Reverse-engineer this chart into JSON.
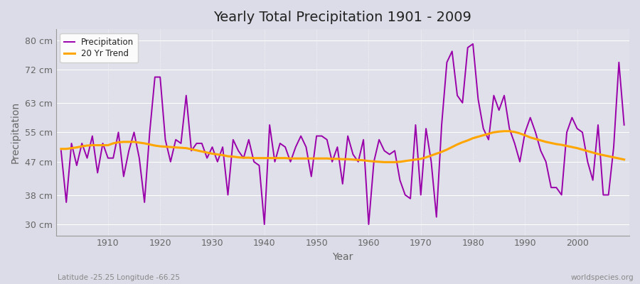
{
  "title": "Yearly Total Precipitation 1901 - 2009",
  "xlabel": "Year",
  "ylabel": "Precipitation",
  "bottom_left_label": "Latitude -25.25 Longitude -66.25",
  "bottom_right_label": "worldspecies.org",
  "fig_background_color": "#dcdce8",
  "plot_background_color": "#e0e0ea",
  "precip_color": "#9900aa",
  "trend_color": "#ffa500",
  "precip_linewidth": 1.4,
  "trend_linewidth": 2.2,
  "yticks": [
    30,
    38,
    47,
    55,
    63,
    72,
    80
  ],
  "ytick_labels": [
    "30 cm",
    "38 cm",
    "47 cm",
    "55 cm",
    "63 cm",
    "72 cm",
    "80 cm"
  ],
  "xticks": [
    1910,
    1920,
    1930,
    1940,
    1950,
    1960,
    1970,
    1980,
    1990,
    2000
  ],
  "ylim": [
    27,
    83
  ],
  "xlim": [
    1900,
    2010
  ],
  "years": [
    1901,
    1902,
    1903,
    1904,
    1905,
    1906,
    1907,
    1908,
    1909,
    1910,
    1911,
    1912,
    1913,
    1914,
    1915,
    1916,
    1917,
    1918,
    1919,
    1920,
    1921,
    1922,
    1923,
    1924,
    1925,
    1926,
    1927,
    1928,
    1929,
    1930,
    1931,
    1932,
    1933,
    1934,
    1935,
    1936,
    1937,
    1938,
    1939,
    1940,
    1941,
    1942,
    1943,
    1944,
    1945,
    1946,
    1947,
    1948,
    1949,
    1950,
    1951,
    1952,
    1953,
    1954,
    1955,
    1956,
    1957,
    1958,
    1959,
    1960,
    1961,
    1962,
    1963,
    1964,
    1965,
    1966,
    1967,
    1968,
    1969,
    1970,
    1971,
    1972,
    1973,
    1974,
    1975,
    1976,
    1977,
    1978,
    1979,
    1980,
    1981,
    1982,
    1983,
    1984,
    1985,
    1986,
    1987,
    1988,
    1989,
    1990,
    1991,
    1992,
    1993,
    1994,
    1995,
    1996,
    1997,
    1998,
    1999,
    2000,
    2001,
    2002,
    2003,
    2004,
    2005,
    2006,
    2007,
    2008,
    2009
  ],
  "precip": [
    50,
    36,
    52,
    46,
    52,
    48,
    54,
    44,
    52,
    48,
    48,
    55,
    43,
    50,
    55,
    48,
    36,
    55,
    70,
    70,
    53,
    47,
    53,
    52,
    65,
    50,
    52,
    52,
    48,
    51,
    47,
    51,
    38,
    53,
    50,
    48,
    53,
    47,
    46,
    30,
    57,
    47,
    52,
    51,
    47,
    51,
    54,
    51,
    43,
    54,
    54,
    53,
    47,
    51,
    41,
    54,
    49,
    47,
    53,
    30,
    47,
    53,
    50,
    49,
    50,
    42,
    38,
    37,
    57,
    38,
    56,
    47,
    32,
    57,
    74,
    77,
    65,
    63,
    78,
    79,
    64,
    56,
    53,
    65,
    61,
    65,
    56,
    52,
    47,
    55,
    59,
    55,
    50,
    47,
    40,
    40,
    38,
    55,
    59,
    56,
    55,
    47,
    42,
    57,
    38,
    38,
    51,
    74,
    57
  ],
  "trend": [
    50.5,
    50.5,
    50.7,
    50.9,
    51.2,
    51.4,
    51.5,
    51.5,
    51.5,
    51.5,
    52.0,
    52.3,
    52.4,
    52.4,
    52.4,
    52.2,
    52.0,
    51.7,
    51.4,
    51.2,
    51.1,
    51.0,
    50.9,
    50.8,
    50.7,
    50.4,
    50.1,
    49.8,
    49.5,
    49.2,
    49.0,
    48.8,
    48.5,
    48.4,
    48.2,
    48.1,
    48.1,
    48.0,
    48.0,
    48.0,
    48.0,
    48.0,
    48.0,
    48.0,
    47.9,
    47.9,
    47.9,
    47.9,
    47.9,
    47.9,
    47.9,
    47.9,
    47.8,
    47.8,
    47.7,
    47.7,
    47.6,
    47.5,
    47.4,
    47.2,
    47.1,
    47.0,
    46.9,
    46.9,
    46.9,
    47.0,
    47.2,
    47.4,
    47.6,
    47.8,
    48.2,
    48.7,
    49.2,
    49.7,
    50.3,
    51.0,
    51.7,
    52.3,
    52.8,
    53.4,
    53.8,
    54.2,
    54.6,
    55.0,
    55.2,
    55.3,
    55.3,
    55.1,
    54.7,
    54.2,
    53.6,
    53.2,
    52.8,
    52.4,
    52.1,
    51.8,
    51.6,
    51.3,
    51.0,
    50.7,
    50.3,
    49.9,
    49.5,
    49.1,
    48.8,
    48.5,
    48.2,
    47.9,
    47.6
  ]
}
